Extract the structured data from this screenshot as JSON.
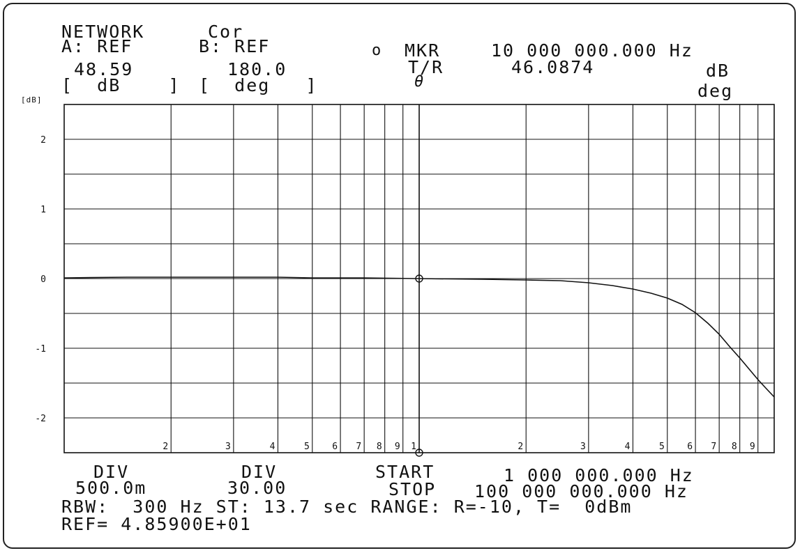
{
  "header": {
    "row1": {
      "mode": "NETWORK",
      "cor": "Cor",
      "marker_symbol": "o",
      "mkr": "MKR",
      "mkr_freq": "10 000 000.000 Hz"
    },
    "row2": {
      "a": "A: REF",
      "b": "B: REF"
    },
    "row3": {
      "a_val": "48.59",
      "b_val": "180.0",
      "tr": "T/R",
      "mkr_val": "46.0874",
      "unit1": "dB"
    },
    "row4": {
      "a_unit": "[  dB    ]",
      "b_unit": "[  deg   ]",
      "theta": "θ",
      "unit2": "deg"
    }
  },
  "footer": {
    "div1_label": "DIV",
    "div1_val": "500.0m",
    "div2_label": "DIV",
    "div2_val": "30.00",
    "start_label": "START",
    "start_val": "1 000 000.000 Hz",
    "stop_label": "STOP",
    "stop_val": "100 000 000.000 Hz",
    "rbw": "RBW:  300 Hz ST: 13.7 sec RANGE: R=-10, T=  0dBm",
    "ref": "REF= 4.85900E+01"
  },
  "chart_data": {
    "type": "line",
    "ylabel": "[dB]",
    "xscale": "log",
    "xlim": [
      1000000,
      100000000
    ],
    "ylim": [
      -2.5,
      2.5
    ],
    "y_ticks": [
      2,
      1,
      0,
      -1,
      -2
    ],
    "y_tick_labels": [
      "2",
      "1",
      "0",
      "-1",
      "-2"
    ],
    "x_decade_tick_labels": [
      "2",
      "3",
      "4",
      "5",
      "6",
      "7",
      "8",
      "9",
      "1",
      "2",
      "3",
      "4",
      "5",
      "6",
      "7",
      "8",
      "9"
    ],
    "grid": true,
    "marker": {
      "x": 10000000,
      "y": 0
    },
    "series": [
      {
        "x": [
          1000000,
          1500000,
          2000000,
          3000000,
          4000000,
          5000000,
          7000000,
          10000000,
          15000000,
          20000000,
          25000000,
          30000000,
          35000000,
          40000000,
          45000000,
          50000000,
          55000000,
          60000000,
          65000000,
          70000000,
          75000000,
          80000000,
          85000000,
          90000000,
          95000000,
          100000000
        ],
        "y": [
          0.01,
          0.02,
          0.02,
          0.02,
          0.02,
          0.01,
          0.01,
          0.0,
          -0.01,
          -0.02,
          -0.03,
          -0.06,
          -0.1,
          -0.15,
          -0.21,
          -0.28,
          -0.37,
          -0.49,
          -0.64,
          -0.8,
          -0.98,
          -1.14,
          -1.3,
          -1.45,
          -1.58,
          -1.7
        ]
      }
    ]
  }
}
